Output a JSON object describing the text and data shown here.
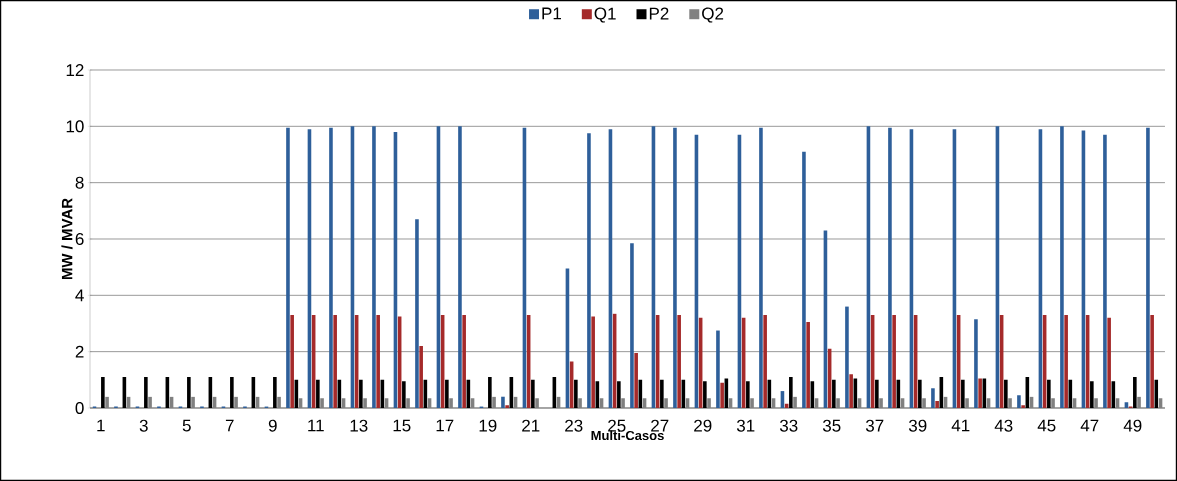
{
  "chart_data": {
    "type": "bar",
    "xlabel": "Multi-Casos",
    "ylabel": "MW / MVAR",
    "categories": [
      "1",
      null,
      "3",
      null,
      "5",
      null,
      "7",
      null,
      "9",
      null,
      "11",
      null,
      "13",
      null,
      "15",
      null,
      "17",
      null,
      "19",
      null,
      "21",
      null,
      "23",
      null,
      "25",
      null,
      "27",
      null,
      "29",
      null,
      "31",
      null,
      "33",
      null,
      "35",
      null,
      "37",
      null,
      "39",
      null,
      "41",
      null,
      "43",
      null,
      "45",
      null,
      "47",
      null,
      "49",
      null
    ],
    "series": [
      {
        "name": "P1",
        "color": "#2e5f9a",
        "values": [
          0.05,
          0.05,
          0.05,
          0.05,
          0.05,
          0.05,
          0.05,
          0.05,
          0.05,
          9.95,
          9.9,
          9.95,
          10,
          10,
          9.8,
          6.7,
          10,
          10,
          0.05,
          0.4,
          9.95,
          0,
          4.95,
          9.75,
          9.9,
          5.85,
          10,
          9.95,
          9.7,
          2.75,
          9.7,
          9.95,
          0.6,
          9.1,
          6.3,
          3.6,
          10,
          9.95,
          9.9,
          0.7,
          9.9,
          3.15,
          10,
          0.45,
          9.9,
          10,
          9.85,
          9.7,
          0.2,
          9.95
        ]
      },
      {
        "name": "Q1",
        "color": "#a52a2a",
        "values": [
          0,
          0,
          0,
          0,
          0,
          0,
          0,
          0,
          0,
          3.3,
          3.3,
          3.3,
          3.3,
          3.3,
          3.25,
          2.2,
          3.3,
          3.3,
          0,
          0.1,
          3.3,
          0,
          1.65,
          3.25,
          3.35,
          1.95,
          3.3,
          3.3,
          3.2,
          0.9,
          3.2,
          3.3,
          0.15,
          3.05,
          2.1,
          1.2,
          3.3,
          3.3,
          3.3,
          0.25,
          3.3,
          1.05,
          3.3,
          0.1,
          3.3,
          3.3,
          3.3,
          3.2,
          0.05,
          3.3
        ]
      },
      {
        "name": "P2",
        "color": "#000000",
        "values": [
          1.1,
          1.1,
          1.1,
          1.1,
          1.1,
          1.1,
          1.1,
          1.1,
          1.1,
          1.0,
          1.0,
          1.0,
          1.0,
          1.0,
          0.95,
          1.0,
          1.0,
          1.0,
          1.1,
          1.1,
          1.0,
          1.1,
          1.0,
          0.95,
          0.95,
          1.0,
          1.0,
          1.0,
          0.95,
          1.05,
          0.95,
          1.0,
          1.1,
          0.95,
          1.0,
          1.05,
          1.0,
          1.0,
          1.0,
          1.1,
          1.0,
          1.05,
          1.0,
          1.1,
          1.0,
          1.0,
          0.95,
          0.95,
          1.1,
          1.0
        ]
      },
      {
        "name": "Q2",
        "color": "#808080",
        "values": [
          0.4,
          0.4,
          0.4,
          0.4,
          0.4,
          0.4,
          0.4,
          0.4,
          0.4,
          0.35,
          0.35,
          0.35,
          0.35,
          0.35,
          0.35,
          0.35,
          0.35,
          0.35,
          0.4,
          0.4,
          0.35,
          0.4,
          0.35,
          0.35,
          0.35,
          0.35,
          0.35,
          0.35,
          0.35,
          0.35,
          0.35,
          0.35,
          0.4,
          0.35,
          0.35,
          0.35,
          0.35,
          0.35,
          0.35,
          0.4,
          0.35,
          0.35,
          0.35,
          0.4,
          0.35,
          0.35,
          0.35,
          0.35,
          0.4,
          0.35
        ]
      }
    ],
    "ylim": [
      0,
      12
    ],
    "yticks": [
      0,
      2,
      4,
      6,
      8,
      10,
      12
    ],
    "grid": "y",
    "legend": "top"
  }
}
